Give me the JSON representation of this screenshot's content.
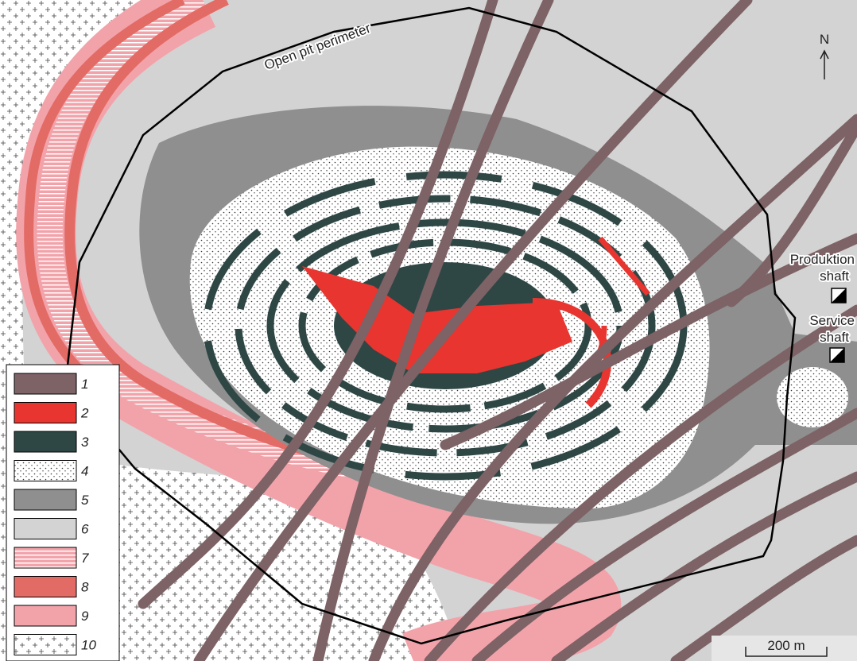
{
  "map": {
    "perimeter_label": "Open pit perimeter",
    "north": "N",
    "production_shaft": [
      "Produktion",
      "shaft"
    ],
    "service_shaft": [
      "Service",
      "shaft"
    ],
    "scale": "200 m",
    "legend": [
      {
        "label": "1",
        "color": "#7d6266"
      },
      {
        "label": "2",
        "color": "#e8352f"
      },
      {
        "label": "3",
        "color": "#2e4745"
      },
      {
        "label": "4",
        "color": "dots"
      },
      {
        "label": "5",
        "color": "#8f8f8f"
      },
      {
        "label": "6",
        "color": "#d3d3d3"
      },
      {
        "label": "7",
        "color": "stripes"
      },
      {
        "label": "8",
        "color": "#e36b66"
      },
      {
        "label": "9",
        "color": "#f2a3aa"
      },
      {
        "label": "10",
        "color": "crosses"
      }
    ]
  }
}
